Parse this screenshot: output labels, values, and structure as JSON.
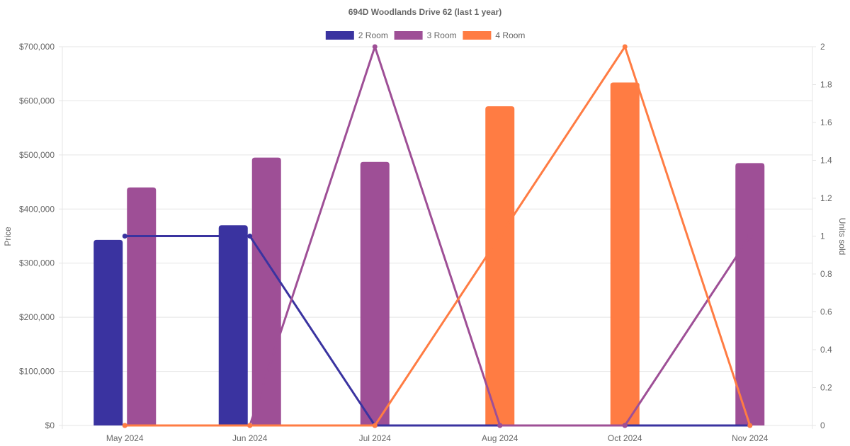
{
  "chart_data": {
    "type": "bar",
    "title": "694D Woodlands Drive 62 (last 1 year)",
    "categories": [
      "May 2024",
      "Jun 2024",
      "Jul 2024",
      "Aug 2024",
      "Oct 2024",
      "Nov 2024"
    ],
    "y_left": {
      "label": "Price",
      "range": [
        0,
        700000
      ],
      "ticks": [
        "$0",
        "$100,000",
        "$200,000",
        "$300,000",
        "$400,000",
        "$500,000",
        "$600,000",
        "$700,000"
      ]
    },
    "y_right": {
      "label": "Units sold",
      "range": [
        0,
        2
      ],
      "ticks": [
        "0",
        "0.2",
        "0.4",
        "0.6",
        "0.8",
        "1",
        "1.2",
        "1.4",
        "1.6",
        "1.8",
        "2"
      ]
    },
    "grid": true,
    "legend_position": "top",
    "series": [
      {
        "name": "2 Room",
        "color": "#3a33a0",
        "prices": [
          343000,
          370000,
          null,
          null,
          null,
          null
        ],
        "units": [
          1,
          1,
          0,
          0,
          0,
          0
        ]
      },
      {
        "name": "3 Room",
        "color": "#9e4f96",
        "prices": [
          440000,
          495000,
          487000,
          null,
          null,
          485000
        ],
        "units": [
          0,
          0,
          2,
          0,
          0,
          1
        ]
      },
      {
        "name": "4 Room",
        "color": "#ff7c43",
        "prices": [
          null,
          null,
          null,
          590000,
          634000,
          null
        ],
        "units": [
          0,
          0,
          0,
          1,
          2,
          0
        ]
      }
    ]
  }
}
